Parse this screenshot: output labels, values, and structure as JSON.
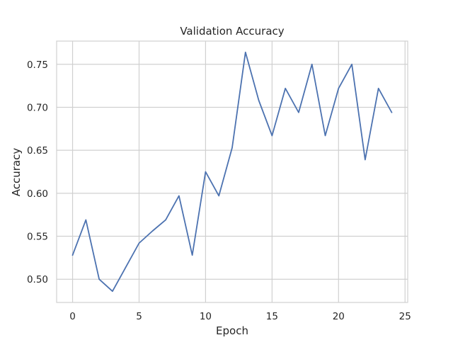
{
  "chart_data": {
    "type": "line",
    "title": "Validation Accuracy",
    "xlabel": "Epoch",
    "ylabel": "Accuracy",
    "xlim": [
      -1.2,
      25.2
    ],
    "ylim": [
      0.473,
      0.777
    ],
    "xticks": [
      0,
      5,
      10,
      15,
      20,
      25
    ],
    "yticks": [
      0.5,
      0.55,
      0.6,
      0.65,
      0.7,
      0.75
    ],
    "ytick_labels": [
      "0.50",
      "0.55",
      "0.60",
      "0.65",
      "0.70",
      "0.75"
    ],
    "grid": true,
    "series": [
      {
        "color": "#4c72b0",
        "x": [
          0,
          1,
          2,
          3,
          4,
          5,
          6,
          7,
          8,
          9,
          10,
          11,
          12,
          13,
          14,
          15,
          16,
          17,
          18,
          19,
          20,
          21,
          22,
          23,
          24
        ],
        "values": [
          0.528,
          0.569,
          0.5,
          0.486,
          0.514,
          0.542,
          0.556,
          0.569,
          0.597,
          0.528,
          0.625,
          0.597,
          0.653,
          0.764,
          0.708,
          0.667,
          0.722,
          0.694,
          0.75,
          0.667,
          0.722,
          0.75,
          0.639,
          0.722,
          0.694
        ]
      }
    ]
  }
}
